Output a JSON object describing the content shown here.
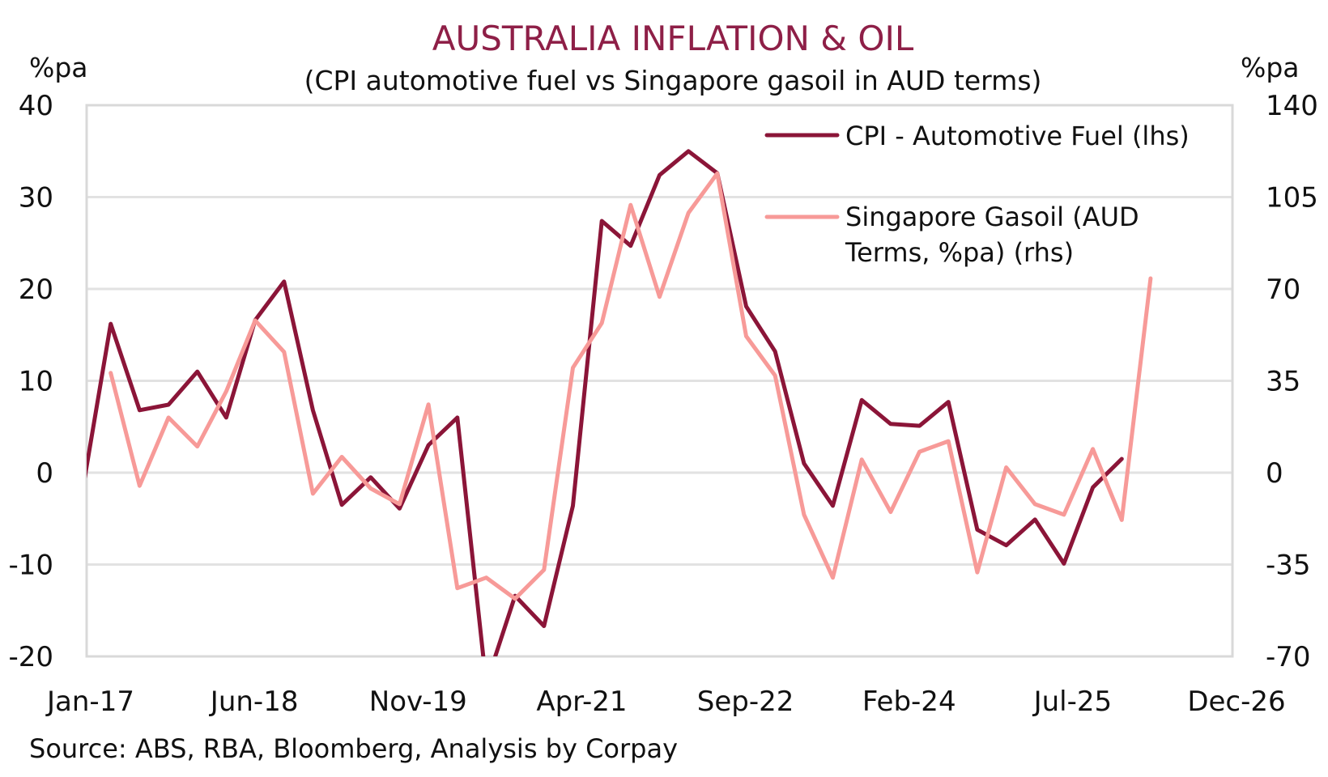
{
  "chart_data": {
    "type": "line",
    "title": "AUSTRALIA INFLATION & OIL",
    "subtitle": "(CPI automotive fuel vs Singapore gasoil in AUD terms)",
    "source": "Source: ABS, RBA, Bloomberg, Analysis by Corpay",
    "ylabel_left": "%pa",
    "ylabel_right": "%pa",
    "xlabel": "",
    "x_axis": {
      "unit": "months since Jan-17",
      "range": [
        0,
        119
      ],
      "tick_values": [
        0,
        17,
        34,
        51,
        68,
        85,
        102,
        119
      ],
      "tick_labels": [
        "Jan-17",
        "Jun-18",
        "Nov-19",
        "Apr-21",
        "Sep-22",
        "Feb-24",
        "Jul-25",
        "Dec-26"
      ]
    },
    "y_left": {
      "range": [
        -20,
        40
      ],
      "tick_values": [
        -20,
        -10,
        0,
        10,
        20,
        30,
        40
      ],
      "tick_labels": [
        "-20",
        "-10",
        "0",
        "10",
        "20",
        "30",
        "40"
      ]
    },
    "y_right": {
      "range": [
        -70,
        140
      ],
      "tick_values": [
        -70,
        -35,
        0,
        35,
        70,
        105,
        140
      ],
      "tick_labels": [
        "-70",
        "-35",
        "0",
        "35",
        "70",
        "105",
        "140"
      ]
    },
    "grid": true,
    "legend_position": "top-right",
    "series": [
      {
        "name": "CPI - Automotive Fuel (lhs)",
        "axis": "left",
        "color": "#8B1538",
        "x": [
          -0.5,
          2.5,
          5.5,
          8.5,
          11.5,
          14.5,
          17.5,
          20.5,
          23.5,
          26.5,
          29.5,
          32.5,
          35.5,
          38.5,
          41.5,
          44.5,
          47.5,
          50.5,
          53.5,
          56.5,
          59.5,
          62.5,
          65.5,
          68.5,
          71.5,
          74.5,
          77.5,
          80.5,
          83.5,
          86.5,
          89.5,
          92.5,
          95.5,
          98.5,
          101.5,
          104.5,
          107.5
        ],
        "values": [
          -2.4,
          16.2,
          6.8,
          7.4,
          11.0,
          6.0,
          16.6,
          20.8,
          6.8,
          -3.5,
          -0.5,
          -3.9,
          3.0,
          6.0,
          -23.0,
          -13.4,
          -16.7,
          -3.6,
          27.4,
          24.7,
          32.4,
          35.0,
          32.6,
          18.1,
          13.2,
          1.0,
          -3.6,
          7.9,
          5.3,
          5.1,
          7.7,
          -6.2,
          -7.9,
          -5.1,
          -9.9,
          -1.6,
          1.5
        ]
      },
      {
        "name": "Singapore Gasoil (AUD Terms, %pa) (rhs)",
        "axis": "right",
        "color": "#F79A98",
        "x": [
          2.5,
          5.5,
          8.5,
          11.5,
          14.5,
          17.5,
          20.5,
          23.5,
          26.5,
          29.5,
          32.5,
          35.5,
          38.5,
          41.5,
          44.5,
          47.5,
          50.5,
          53.5,
          56.5,
          59.5,
          62.5,
          65.5,
          68.5,
          71.5,
          74.5,
          77.5,
          80.5,
          83.5,
          86.5,
          89.5,
          92.5,
          95.5,
          98.5,
          101.5,
          104.5,
          107.5,
          110.5
        ],
        "values": [
          38,
          -5,
          21,
          10,
          31,
          58,
          46,
          -8,
          6,
          -6,
          -12,
          26,
          -44,
          -40,
          -48,
          -37,
          40,
          57,
          102,
          67,
          99,
          114,
          52,
          37,
          -16,
          -40,
          5,
          -15,
          8,
          12,
          -38,
          2,
          -12,
          -16,
          9,
          -18,
          74
        ]
      }
    ],
    "legend": [
      {
        "label_lines": [
          "CPI - Automotive Fuel (lhs)"
        ],
        "color": "#8B1538"
      },
      {
        "label_lines": [
          "Singapore Gasoil (AUD",
          "Terms, %pa) (rhs)"
        ],
        "color": "#F79A98"
      }
    ]
  }
}
